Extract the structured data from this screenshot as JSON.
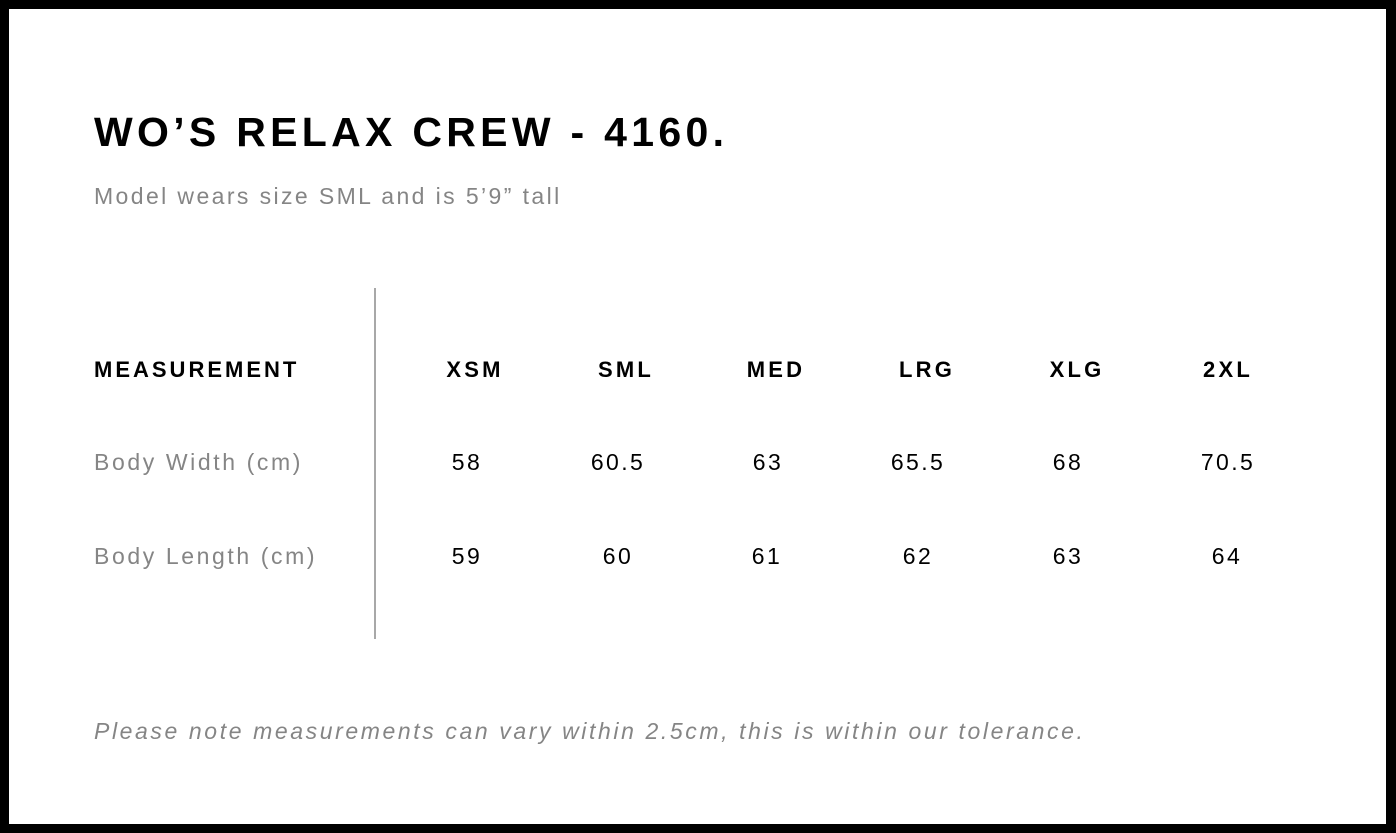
{
  "title": "WO’S RELAX CREW - 4160.",
  "subtitle": "Model wears size SML and is 5’9” tall",
  "table": {
    "header_label": "MEASUREMENT",
    "sizes": [
      "XSM",
      "SML",
      "MED",
      "LRG",
      "XLG",
      "2XL"
    ],
    "rows": [
      {
        "label": "Body Width (cm)",
        "values": [
          "58",
          "60.5",
          "63",
          "65.5",
          "68",
          "70.5"
        ]
      },
      {
        "label": "Body Length (cm)",
        "values": [
          "59",
          "60",
          "61",
          "62",
          "63",
          "64"
        ]
      }
    ]
  },
  "footer_note": "Please note measurements can vary within 2.5cm, this is within our tolerance."
}
